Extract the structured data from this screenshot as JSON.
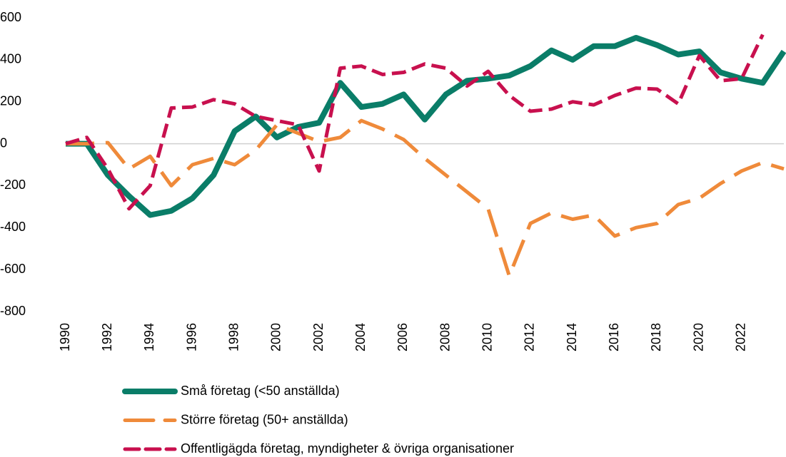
{
  "chart_data": {
    "type": "line",
    "x": [
      1990,
      1991,
      1992,
      1993,
      1994,
      1995,
      1996,
      1997,
      1998,
      1999,
      2000,
      2001,
      2002,
      2003,
      2004,
      2005,
      2006,
      2007,
      2008,
      2009,
      2010,
      2011,
      2012,
      2013,
      2014,
      2015,
      2016,
      2017,
      2018,
      2019,
      2020,
      2021,
      2022,
      2023,
      2024
    ],
    "xlim": [
      1990,
      2024
    ],
    "xticks": [
      1990,
      1992,
      1994,
      1996,
      1998,
      2000,
      2002,
      2004,
      2006,
      2008,
      2010,
      2012,
      2014,
      2016,
      2018,
      2020,
      2022
    ],
    "ylim": [
      -800,
      600
    ],
    "yticks": [
      -800,
      -600,
      -400,
      -200,
      0,
      200,
      400,
      600
    ],
    "grid": false,
    "zero_line": true,
    "legend": "bottom",
    "series": [
      {
        "name": "Små företag (<50 anställda)",
        "color": "#0a7d68",
        "line_style": "solid",
        "values": [
          0,
          0,
          -150,
          -250,
          -340,
          -320,
          -260,
          -150,
          60,
          130,
          30,
          80,
          100,
          290,
          175,
          190,
          235,
          115,
          235,
          300,
          310,
          325,
          370,
          445,
          400,
          465,
          465,
          505,
          470,
          425,
          440,
          340,
          310,
          290,
          440
        ]
      },
      {
        "name": "Större företag (50+ anställda)",
        "color": "#ef8a3a",
        "line_style": "long-dash",
        "values": [
          0,
          0,
          5,
          -120,
          -60,
          -200,
          -100,
          -70,
          -100,
          -30,
          90,
          50,
          10,
          30,
          110,
          70,
          20,
          -70,
          -150,
          -230,
          -310,
          -630,
          -380,
          -330,
          -360,
          -340,
          -440,
          -400,
          -380,
          -290,
          -260,
          -190,
          -130,
          -90,
          -120
        ]
      },
      {
        "name": "Offentligägda företag, myndigheter & övriga organisationer",
        "color": "#c8104e",
        "line_style": "dash",
        "values": [
          0,
          30,
          -120,
          -310,
          -200,
          170,
          175,
          210,
          190,
          130,
          110,
          90,
          -130,
          360,
          370,
          330,
          340,
          380,
          360,
          275,
          345,
          230,
          155,
          165,
          200,
          185,
          230,
          265,
          260,
          190,
          420,
          300,
          310,
          520,
          null
        ]
      }
    ]
  }
}
